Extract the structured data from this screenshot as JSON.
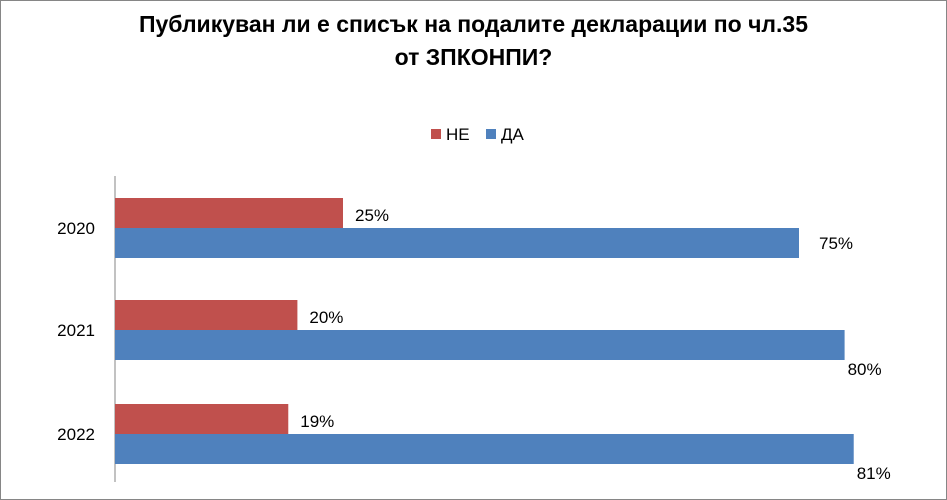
{
  "chart_data": {
    "type": "bar",
    "orientation": "horizontal",
    "title_lines": [
      "Публикуван ли е списък на подалите декларации по чл.35",
      "от ЗПКОНПИ?"
    ],
    "categories": [
      "2020",
      "2021",
      "2022"
    ],
    "series": [
      {
        "name": "НЕ",
        "color": "#C0504D",
        "values": [
          25,
          20,
          19
        ]
      },
      {
        "name": "ДА",
        "color": "#4F81BD",
        "values": [
          75,
          80,
          81
        ]
      }
    ],
    "value_format": "percent",
    "legend_position": "top",
    "grid": false
  }
}
